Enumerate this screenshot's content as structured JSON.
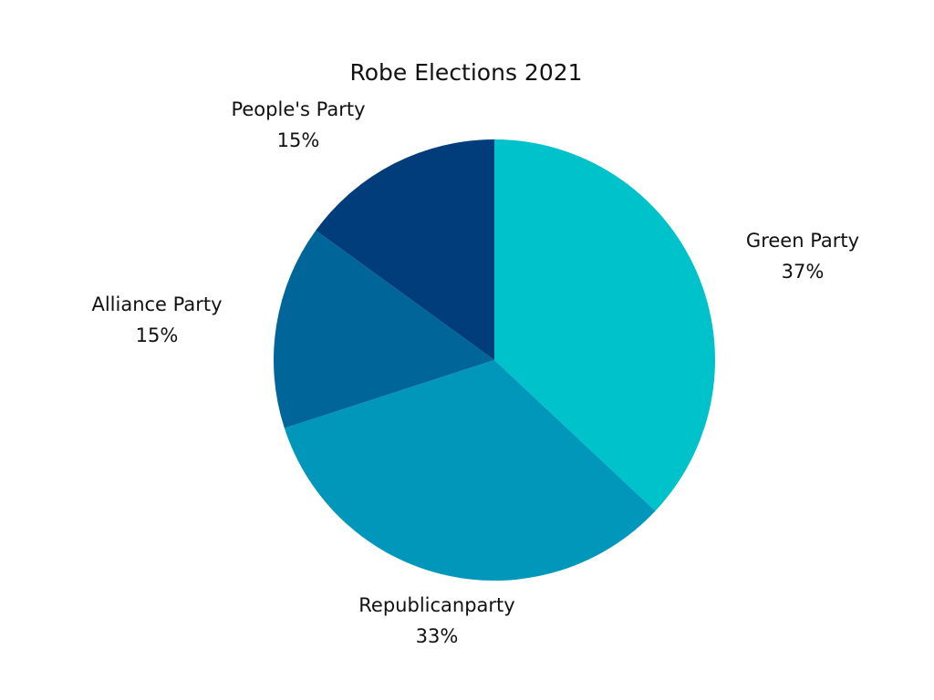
{
  "chart_data": {
    "type": "pie",
    "title": "Robe Elections 2021",
    "start_angle_deg": 0,
    "direction": "clockwise",
    "slices": [
      {
        "name": "Green Party",
        "value": 37,
        "label": "37%",
        "color": "#00C2CB"
      },
      {
        "name": "Republicanparty",
        "value": 33,
        "label": "33%",
        "color": "#0097BA"
      },
      {
        "name": "Alliance Party",
        "value": 15,
        "label": "15%",
        "color": "#006699"
      },
      {
        "name": "People's Party",
        "value": 15,
        "label": "15%",
        "color": "#003D7A"
      }
    ]
  }
}
